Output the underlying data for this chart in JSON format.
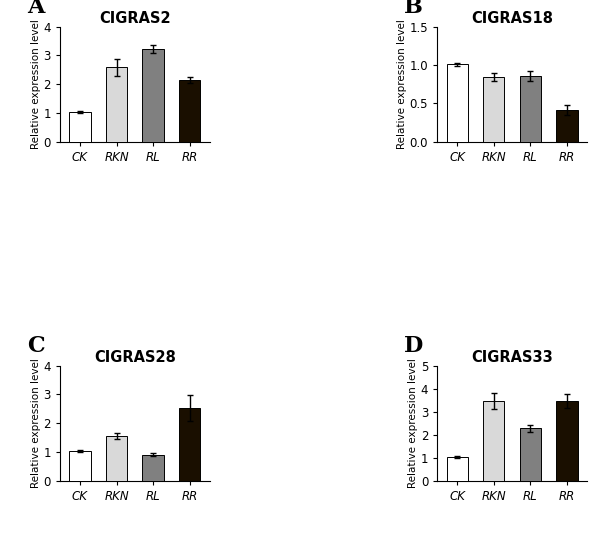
{
  "panels": [
    {
      "label": "A",
      "title": "CIGRAS2",
      "categories": [
        "CK",
        "RKN",
        "RL",
        "RR"
      ],
      "values": [
        1.03,
        2.58,
        3.22,
        2.15
      ],
      "errors": [
        0.04,
        0.3,
        0.13,
        0.1
      ],
      "ylim": [
        0,
        4
      ],
      "yticks": [
        0,
        1,
        2,
        3,
        4
      ],
      "ytick_labels": [
        "0",
        "1",
        "2",
        "3",
        "4"
      ],
      "colors": [
        "#ffffff",
        "#d9d9d9",
        "#808080",
        "#1a0f00"
      ]
    },
    {
      "label": "B",
      "title": "CIGRAS18",
      "categories": [
        "CK",
        "RKN",
        "RL",
        "RR"
      ],
      "values": [
        1.01,
        0.84,
        0.855,
        0.41
      ],
      "errors": [
        0.02,
        0.055,
        0.065,
        0.07
      ],
      "ylim": [
        0.0,
        1.5
      ],
      "yticks": [
        0.0,
        0.5,
        1.0,
        1.5
      ],
      "ytick_labels": [
        "0.0",
        "0.5",
        "1.0",
        "1.5"
      ],
      "colors": [
        "#ffffff",
        "#d9d9d9",
        "#808080",
        "#1a0f00"
      ]
    },
    {
      "label": "C",
      "title": "CIGRAS28",
      "categories": [
        "CK",
        "RKN",
        "RL",
        "RR"
      ],
      "values": [
        1.03,
        1.55,
        0.9,
        2.52
      ],
      "errors": [
        0.04,
        0.1,
        0.055,
        0.45
      ],
      "ylim": [
        0,
        4
      ],
      "yticks": [
        0,
        1,
        2,
        3,
        4
      ],
      "ytick_labels": [
        "0",
        "1",
        "2",
        "3",
        "4"
      ],
      "colors": [
        "#ffffff",
        "#d9d9d9",
        "#808080",
        "#1a0f00"
      ]
    },
    {
      "label": "D",
      "title": "CIGRAS33",
      "categories": [
        "CK",
        "RKN",
        "RL",
        "RR"
      ],
      "values": [
        1.01,
        3.48,
        2.28,
        3.45
      ],
      "errors": [
        0.04,
        0.35,
        0.15,
        0.3
      ],
      "ylim": [
        0,
        5
      ],
      "yticks": [
        0,
        1,
        2,
        3,
        4,
        5
      ],
      "ytick_labels": [
        "0",
        "1",
        "2",
        "3",
        "4",
        "5"
      ],
      "colors": [
        "#ffffff",
        "#d9d9d9",
        "#808080",
        "#1a0f00"
      ]
    }
  ],
  "ylabel": "Relative expression level",
  "bar_width": 0.58,
  "edgecolor": "#000000",
  "background_color": "#ffffff",
  "title_fontsize": 10.5,
  "ylabel_fontsize": 7.5,
  "tick_fontsize": 8.5,
  "panel_label_fontsize": 16,
  "capsize": 2.5,
  "elinewidth": 1.0,
  "capthick": 1.0
}
